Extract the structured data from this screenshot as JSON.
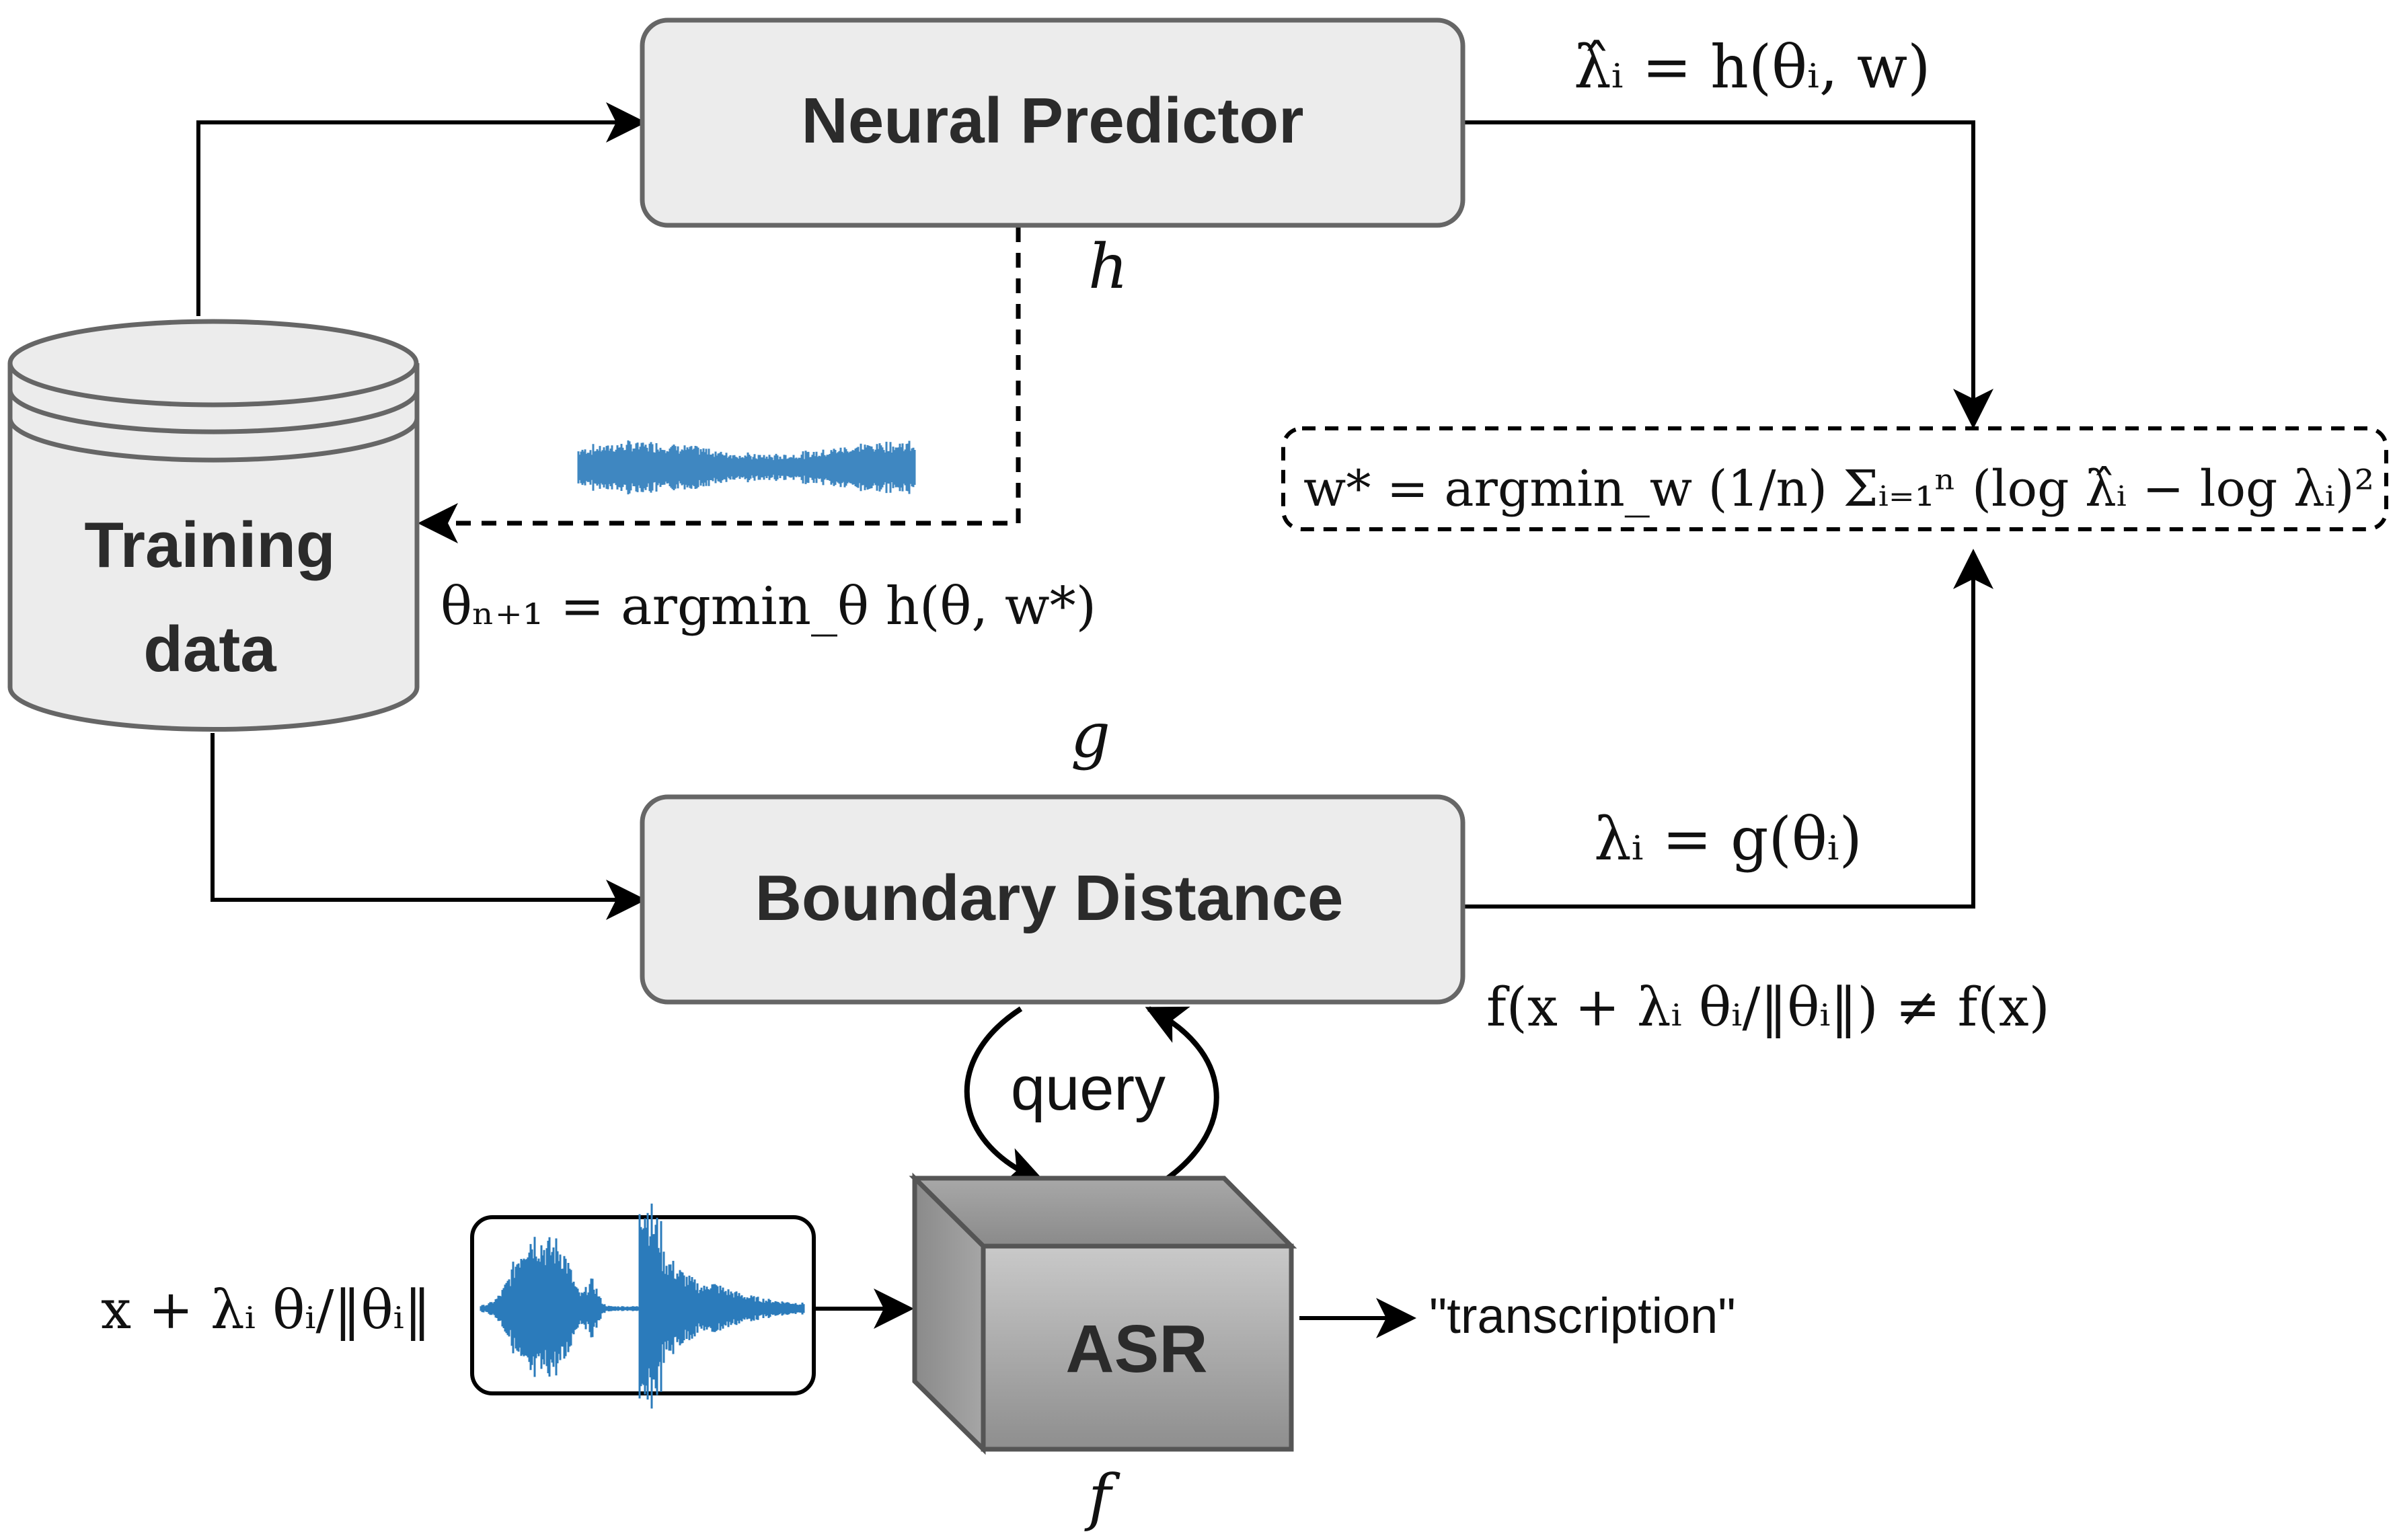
{
  "nodes": {
    "neural_predictor": "Neural Predictor",
    "boundary_distance": "Boundary Distance",
    "training_data_line1": "Training",
    "training_data_line2": "data",
    "asr": "ASR"
  },
  "edge_labels": {
    "h": "h",
    "g": "g",
    "f": "f",
    "query": "query",
    "transcription": "\"transcription\""
  },
  "equations": {
    "lambda_hat": "λ̂ᵢ = h(θᵢ, w)",
    "lambda_true": "λᵢ = g(θᵢ)",
    "w_star": "w* = argmin_w (1/n) Σᵢ₌₁ⁿ (log λ̂ᵢ − log λᵢ)²",
    "theta_next": "θₙ₊₁ = argmin_θ h(θ, w*)",
    "adv_condition": "f(x + λᵢ θᵢ/‖θᵢ‖) ≠ f(x)",
    "adv_input": "x + λᵢ θᵢ/‖θᵢ‖"
  },
  "colors": {
    "box_fill": "#ececec",
    "box_stroke": "#666666",
    "waveform": "#2b7bbb",
    "asr_front_top": "#c4c4c4",
    "asr_front_bottom": "#8f8f8f",
    "line": "#000000"
  }
}
